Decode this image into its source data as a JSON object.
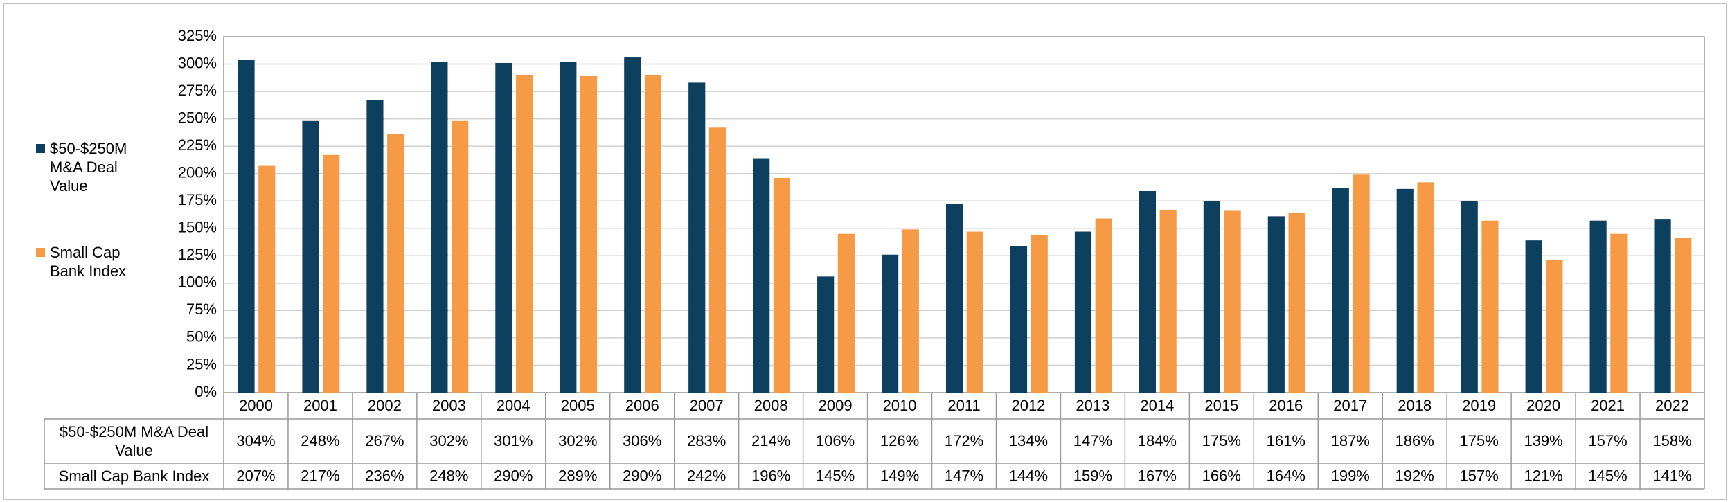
{
  "chart_data": {
    "type": "bar",
    "categories": [
      "2000",
      "2001",
      "2002",
      "2003",
      "2004",
      "2005",
      "2006",
      "2007",
      "2008",
      "2009",
      "2010",
      "2011",
      "2012",
      "2013",
      "2014",
      "2015",
      "2016",
      "2017",
      "2018",
      "2019",
      "2020",
      "2021",
      "2022"
    ],
    "series": [
      {
        "name": "$50-$250M M&A Deal Value",
        "color": "#0d3f5f",
        "values": [
          304,
          248,
          267,
          302,
          301,
          302,
          306,
          283,
          214,
          106,
          126,
          172,
          134,
          147,
          184,
          175,
          161,
          187,
          186,
          175,
          139,
          157,
          158
        ],
        "value_labels": [
          "304%",
          "248%",
          "267%",
          "302%",
          "301%",
          "302%",
          "306%",
          "283%",
          "214%",
          "106%",
          "126%",
          "172%",
          "134%",
          "147%",
          "184%",
          "175%",
          "161%",
          "187%",
          "186%",
          "175%",
          "139%",
          "157%",
          "158%"
        ]
      },
      {
        "name": "Small Cap Bank Index",
        "color": "#f79a46",
        "values": [
          207,
          217,
          236,
          248,
          290,
          289,
          290,
          242,
          196,
          145,
          149,
          147,
          144,
          159,
          167,
          166,
          164,
          199,
          192,
          157,
          121,
          145,
          141
        ],
        "value_labels": [
          "207%",
          "217%",
          "236%",
          "248%",
          "290%",
          "289%",
          "290%",
          "242%",
          "196%",
          "145%",
          "149%",
          "147%",
          "144%",
          "159%",
          "167%",
          "166%",
          "164%",
          "199%",
          "192%",
          "157%",
          "121%",
          "145%",
          "141%"
        ]
      }
    ],
    "ylim": [
      0,
      325
    ],
    "yticks": [
      {
        "value": 0,
        "label": "0%"
      },
      {
        "value": 25,
        "label": "25%"
      },
      {
        "value": 50,
        "label": "50%"
      },
      {
        "value": 75,
        "label": "75%"
      },
      {
        "value": 100,
        "label": "100%"
      },
      {
        "value": 125,
        "label": "125%"
      },
      {
        "value": 150,
        "label": "150%"
      },
      {
        "value": 175,
        "label": "175%"
      },
      {
        "value": 200,
        "label": "200%"
      },
      {
        "value": 225,
        "label": "225%"
      },
      {
        "value": 250,
        "label": "250%"
      },
      {
        "value": 275,
        "label": "275%"
      },
      {
        "value": 300,
        "label": "300%"
      },
      {
        "value": 325,
        "label": "325%"
      }
    ],
    "grid": true,
    "legend": "left"
  }
}
